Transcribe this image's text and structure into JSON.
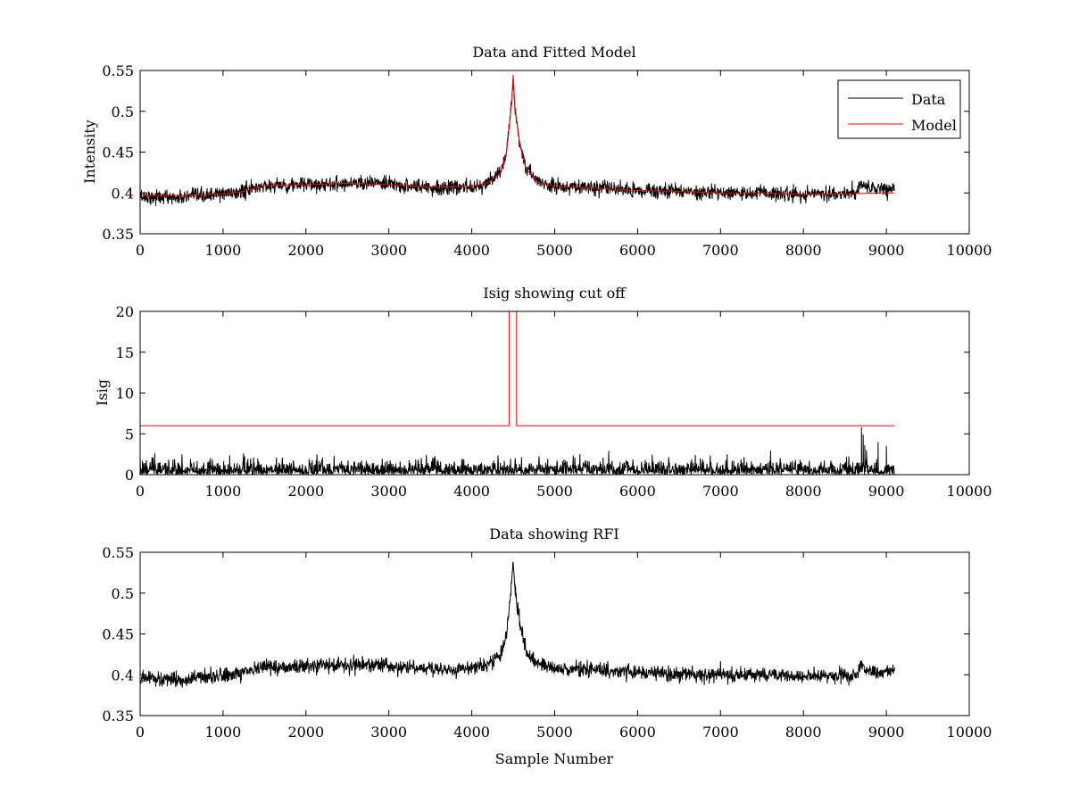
{
  "chart_data": [
    {
      "type": "line",
      "title": "Data and Fitted Model",
      "xlabel": "",
      "ylabel": "Intensity",
      "xlim": [
        0,
        10000
      ],
      "ylim": [
        0.35,
        0.55
      ],
      "xticks": [
        0,
        1000,
        2000,
        3000,
        4000,
        5000,
        6000,
        7000,
        8000,
        9000,
        10000
      ],
      "xtick_labels": [
        "0",
        "1000",
        "2000",
        "3000",
        "4000",
        "5000",
        "6000",
        "7000",
        "8000",
        "9000",
        "10000"
      ],
      "yticks": [
        0.35,
        0.4,
        0.45,
        0.5,
        0.55
      ],
      "ytick_labels": [
        "0.35",
        "0.4",
        "0.45",
        "0.5",
        "0.55"
      ],
      "grid": false,
      "legend": {
        "placement": "top-right",
        "entries": [
          "Data",
          "Model"
        ]
      },
      "series": [
        {
          "name": "Data",
          "color": "#000000",
          "x_range": [
            0,
            9100
          ],
          "noise": 0.0045,
          "envelope": {
            "x": [
              0,
              500,
              1000,
              1200,
              1500,
              2000,
              2500,
              2700,
              3000,
              3500,
              3800,
              4000,
              4200,
              4350,
              4420,
              4480,
              4500,
              4520,
              4580,
              4650,
              4800,
              5000,
              5500,
              6000,
              6500,
              7000,
              7500,
              8000,
              8500,
              8650,
              8700,
              8750,
              8800,
              9000,
              9100
            ],
            "y": [
              0.396,
              0.394,
              0.399,
              0.401,
              0.409,
              0.41,
              0.412,
              0.413,
              0.41,
              0.407,
              0.406,
              0.408,
              0.413,
              0.425,
              0.45,
              0.51,
              0.54,
              0.505,
              0.46,
              0.43,
              0.413,
              0.408,
              0.406,
              0.403,
              0.402,
              0.4,
              0.4,
              0.398,
              0.399,
              0.4,
              0.414,
              0.407,
              0.404,
              0.405,
              0.406
            ]
          }
        },
        {
          "name": "Model",
          "color": "#ff0000",
          "points": {
            "x": [
              0,
              500,
              1000,
              1200,
              1500,
              2000,
              2500,
              3000,
              3500,
              4000,
              4200,
              4350,
              4420,
              4480,
              4500,
              4520,
              4580,
              4650,
              4800,
              5000,
              5500,
              6000,
              6500,
              7000,
              7500,
              8000,
              8500,
              9000,
              9100
            ],
            "y": [
              0.397,
              0.397,
              0.399,
              0.401,
              0.409,
              0.41,
              0.412,
              0.41,
              0.407,
              0.408,
              0.413,
              0.425,
              0.45,
              0.51,
              0.545,
              0.505,
              0.46,
              0.43,
              0.413,
              0.408,
              0.406,
              0.403,
              0.402,
              0.4,
              0.4,
              0.398,
              0.399,
              0.4,
              0.4
            ]
          }
        }
      ]
    },
    {
      "type": "line",
      "title": "Isig showing cut off",
      "xlabel": "",
      "ylabel": "Isig",
      "xlim": [
        0,
        10000
      ],
      "ylim": [
        0,
        20
      ],
      "xticks": [
        0,
        1000,
        2000,
        3000,
        4000,
        5000,
        6000,
        7000,
        8000,
        9000,
        10000
      ],
      "xtick_labels": [
        "0",
        "1000",
        "2000",
        "3000",
        "4000",
        "5000",
        "6000",
        "7000",
        "8000",
        "9000",
        "10000"
      ],
      "yticks": [
        0,
        5,
        10,
        15,
        20
      ],
      "ytick_labels": [
        "0",
        "5",
        "10",
        "15",
        "20"
      ],
      "grid": false,
      "series": [
        {
          "color": "#000000",
          "x_range": [
            0,
            9100
          ],
          "style": "abs-noise",
          "scale": 0.85,
          "spikes": {
            "x": [
              8700,
              8720,
              8740,
              8760,
              8900,
              9000
            ],
            "y": [
              5.8,
              4.9,
              3.6,
              3.0,
              4.0,
              3.5
            ]
          }
        },
        {
          "color": "#ff0000",
          "points": {
            "x": [
              0,
              4450,
              4450,
              4540,
              4540,
              9100
            ],
            "y": [
              6,
              6,
              20,
              20,
              6,
              6
            ]
          }
        }
      ]
    },
    {
      "type": "line",
      "title": "Data showing RFI",
      "xlabel": "Sample Number",
      "ylabel": "",
      "xlim": [
        0,
        10000
      ],
      "ylim": [
        0.35,
        0.55
      ],
      "xticks": [
        0,
        1000,
        2000,
        3000,
        4000,
        5000,
        6000,
        7000,
        8000,
        9000,
        10000
      ],
      "xtick_labels": [
        "0",
        "1000",
        "2000",
        "3000",
        "4000",
        "5000",
        "6000",
        "7000",
        "8000",
        "9000",
        "10000"
      ],
      "yticks": [
        0.35,
        0.4,
        0.45,
        0.5,
        0.55
      ],
      "ytick_labels": [
        "0.35",
        "0.4",
        "0.45",
        "0.5",
        "0.55"
      ],
      "grid": false,
      "series": [
        {
          "color": "#000000",
          "x_range": [
            0,
            9100
          ],
          "noise": 0.0045,
          "envelope": {
            "x": [
              0,
              500,
              1000,
              1200,
              1500,
              2000,
              2500,
              2700,
              3000,
              3500,
              3800,
              4000,
              4200,
              4350,
              4420,
              4480,
              4500,
              4520,
              4580,
              4650,
              4800,
              5000,
              5500,
              6000,
              6500,
              7000,
              7500,
              8000,
              8500,
              8650,
              8700,
              8750,
              8800,
              9000,
              9100
            ],
            "y": [
              0.396,
              0.394,
              0.399,
              0.401,
              0.409,
              0.41,
              0.412,
              0.413,
              0.41,
              0.407,
              0.406,
              0.408,
              0.413,
              0.425,
              0.45,
              0.51,
              0.54,
              0.505,
              0.46,
              0.43,
              0.413,
              0.408,
              0.406,
              0.403,
              0.402,
              0.4,
              0.4,
              0.398,
              0.399,
              0.4,
              0.414,
              0.407,
              0.404,
              0.405,
              0.406
            ]
          }
        }
      ]
    }
  ]
}
